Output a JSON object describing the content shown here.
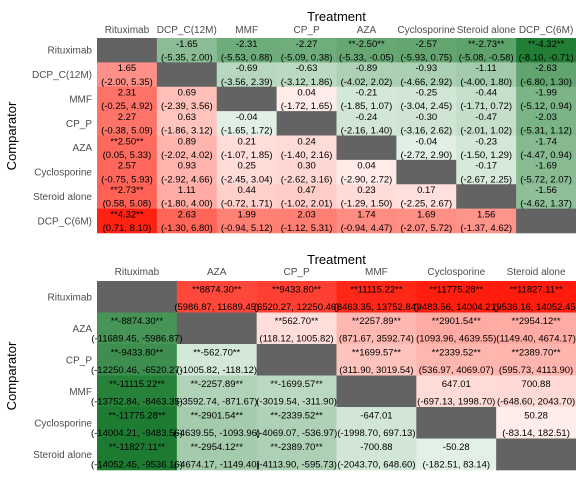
{
  "colors": {
    "negative_strong": "#1a7a2e",
    "negative_light": "#e6f2e8",
    "positive_light": "#fff0ec",
    "positive_strong": "#ff1a0a",
    "diagonal": "#636363"
  },
  "chart_data": [
    {
      "type": "heatmap",
      "title": "Treatment",
      "xlabel": "Treatment",
      "ylabel": "Comparator",
      "x_categories": [
        "Rituximab",
        "DCP_C(12M)",
        "MMF",
        "CP_P",
        "AZA",
        "Cyclosporine",
        "Steroid alone",
        "DCP_C(6M)"
      ],
      "y_categories": [
        "Rituximab",
        "DCP_C(12M)",
        "MMF",
        "CP_P",
        "AZA",
        "Cyclosporine",
        "Steroid alone",
        "DCP_C(6M)"
      ],
      "color_scale": [
        -4.5,
        4.5
      ],
      "cells": [
        [
          null,
          {
            "v": -1.65,
            "est": "-1.65",
            "ci": "(-5.35, 2.00)"
          },
          {
            "v": -2.31,
            "est": "-2.31",
            "ci": "(-5.53, 0.88)"
          },
          {
            "v": -2.27,
            "est": "-2.27",
            "ci": "(-5.09, 0.38)"
          },
          {
            "v": -2.5,
            "est": "**-2.50**",
            "ci": "(-5.33, -0.05)"
          },
          {
            "v": -2.57,
            "est": "-2.57",
            "ci": "(-5.93, 0.75)"
          },
          {
            "v": -2.73,
            "est": "**-2.73**",
            "ci": "(-5.08, -0.58)"
          },
          {
            "v": -4.32,
            "est": "**-4.32**",
            "ci": "(-8.10, -0.71)"
          }
        ],
        [
          {
            "v": 1.65,
            "est": "1.65",
            "ci": "(-2.00, 5.35)"
          },
          null,
          {
            "v": -0.69,
            "est": "-0.69",
            "ci": "(-3.56, 2.39)"
          },
          {
            "v": -0.63,
            "est": "-0.63",
            "ci": "(-3.12, 1.86)"
          },
          {
            "v": -0.89,
            "est": "-0.89",
            "ci": "(-4.02, 2.02)"
          },
          {
            "v": -0.93,
            "est": "-0.93",
            "ci": "(-4.66, 2.92)"
          },
          {
            "v": -1.11,
            "est": "-1.11",
            "ci": "(-4.00, 1.80)"
          },
          {
            "v": -2.63,
            "est": "-2.63",
            "ci": "(-6.80, 1.30)"
          }
        ],
        [
          {
            "v": 2.31,
            "est": "2.31",
            "ci": "(-0.25, 4.92)"
          },
          {
            "v": 0.69,
            "est": "0.69",
            "ci": "(-2.39, 3.56)"
          },
          null,
          {
            "v": 0.04,
            "est": "0.04",
            "ci": "(-1.72, 1.65)"
          },
          {
            "v": -0.21,
            "est": "-0.21",
            "ci": "(-1.85, 1.07)"
          },
          {
            "v": -0.25,
            "est": "-0.25",
            "ci": "(-3.04, 2.45)"
          },
          {
            "v": -0.44,
            "est": "-0.44",
            "ci": "(-1.71, 0.72)"
          },
          {
            "v": -1.99,
            "est": "-1.99",
            "ci": "(-5.12, 0.94)"
          }
        ],
        [
          {
            "v": 2.27,
            "est": "2.27",
            "ci": "(-0.38, 5.09)"
          },
          {
            "v": 0.63,
            "est": "0.63",
            "ci": "(-1.86, 3.12)"
          },
          {
            "v": -0.04,
            "est": "-0.04",
            "ci": "(-1.65, 1.72)"
          },
          null,
          {
            "v": -0.24,
            "est": "-0.24",
            "ci": "(-2.16, 1.40)"
          },
          {
            "v": -0.3,
            "est": "-0.30",
            "ci": "(-3.16, 2.62)"
          },
          {
            "v": -0.47,
            "est": "-0.47",
            "ci": "(-2.01, 1.02)"
          },
          {
            "v": -2.03,
            "est": "-2.03",
            "ci": "(-5.31, 1.12)"
          }
        ],
        [
          {
            "v": 2.5,
            "est": "**2.50**",
            "ci": "(0.05, 5.33)"
          },
          {
            "v": 0.89,
            "est": "0.89",
            "ci": "(-2.02, 4.02)"
          },
          {
            "v": 0.21,
            "est": "0.21",
            "ci": "(-1.07, 1.85)"
          },
          {
            "v": 0.24,
            "est": "0.24",
            "ci": "(-1.40, 2.16)"
          },
          null,
          {
            "v": -0.04,
            "est": "-0.04",
            "ci": "(-2.72, 2.90)"
          },
          {
            "v": -0.23,
            "est": "-0.23",
            "ci": "(-1.50, 1.29)"
          },
          {
            "v": -1.74,
            "est": "-1.74",
            "ci": "(-4.47, 0.94)"
          }
        ],
        [
          {
            "v": 2.57,
            "est": "2.57",
            "ci": "(-0.75, 5.93)"
          },
          {
            "v": 0.93,
            "est": "0.93",
            "ci": "(-2.92, 4.66)"
          },
          {
            "v": 0.25,
            "est": "0.25",
            "ci": "(-2.45, 3.04)"
          },
          {
            "v": 0.3,
            "est": "0.30",
            "ci": "(-2.62, 3.16)"
          },
          {
            "v": 0.04,
            "est": "0.04",
            "ci": "(-2.90, 2.72)"
          },
          null,
          {
            "v": -0.17,
            "est": "-0.17",
            "ci": "(-2.67, 2.25)"
          },
          {
            "v": -1.69,
            "est": "-1.69",
            "ci": "(-5.72, 2.07)"
          }
        ],
        [
          {
            "v": 2.73,
            "est": "**2.73**",
            "ci": "(0.58, 5.08)"
          },
          {
            "v": 1.11,
            "est": "1.11",
            "ci": "(-1.80, 4.00)"
          },
          {
            "v": 0.44,
            "est": "0.44",
            "ci": "(-0.72, 1.71)"
          },
          {
            "v": 0.47,
            "est": "0.47",
            "ci": "(-1.02, 2.01)"
          },
          {
            "v": 0.23,
            "est": "0.23",
            "ci": "(-1.29, 1.50)"
          },
          {
            "v": 0.17,
            "est": "0.17",
            "ci": "(-2.25, 2.67)"
          },
          null,
          {
            "v": -1.56,
            "est": "-1.56",
            "ci": "(-4.62, 1.37)"
          }
        ],
        [
          {
            "v": 4.32,
            "est": "**4.32**",
            "ci": "(0.71, 8.10)"
          },
          {
            "v": 2.63,
            "est": "2.63",
            "ci": "(-1.30, 6.80)"
          },
          {
            "v": 1.99,
            "est": "1.99",
            "ci": "(-0.94, 5.12)"
          },
          {
            "v": 2.03,
            "est": "2.03",
            "ci": "(-1.12, 5.31)"
          },
          {
            "v": 1.74,
            "est": "1.74",
            "ci": "(-0.94, 4.47)"
          },
          {
            "v": 1.69,
            "est": "1.69",
            "ci": "(-2.07, 5.72)"
          },
          {
            "v": 1.56,
            "est": "1.56",
            "ci": "(-1.37, 4.62)"
          },
          null
        ]
      ]
    },
    {
      "type": "heatmap",
      "title": "Treatment",
      "xlabel": "Treatment",
      "ylabel": "Comparator",
      "x_categories": [
        "Rituximab",
        "AZA",
        "CP_P",
        "MMF",
        "Cyclosporine",
        "Steroid alone"
      ],
      "y_categories": [
        "Rituximab",
        "AZA",
        "CP_P",
        "MMF",
        "Cyclosporine",
        "Steroid alone"
      ],
      "color_scale": [
        -12000,
        12000
      ],
      "cells": [
        [
          null,
          {
            "v": 8874.3,
            "est": "**8874.30**",
            "ci": "(5986.87, 11689.45)"
          },
          {
            "v": 9433.8,
            "est": "**9433.80**",
            "ci": "(6520.27, 12250.46)"
          },
          {
            "v": 11115.22,
            "est": "**11115.22**",
            "ci": "(8463.35, 13752.84)"
          },
          {
            "v": 11775.28,
            "est": "**11775.28**",
            "ci": "(9483.56, 14004.21)"
          },
          {
            "v": 11827.11,
            "est": "**11827.11**",
            "ci": "(9536.16, 14052.45)"
          }
        ],
        [
          {
            "v": -8874.3,
            "est": "**-8874.30**",
            "ci": "(-11689.45, -5986.87)"
          },
          null,
          {
            "v": 562.7,
            "est": "**562.70**",
            "ci": "(118.12, 1005.82)"
          },
          {
            "v": 2257.89,
            "est": "**2257.89**",
            "ci": "(871.67, 3592.74)"
          },
          {
            "v": 2901.54,
            "est": "**2901.54**",
            "ci": "(1093.96, 4639.55)"
          },
          {
            "v": 2954.12,
            "est": "**2954.12**",
            "ci": "(1149.40, 4674.17)"
          }
        ],
        [
          {
            "v": -9433.8,
            "est": "**-9433.80**",
            "ci": "(-12250.46, -6520.27)"
          },
          {
            "v": -562.7,
            "est": "**-562.70**",
            "ci": "(-1005.82, -118.12)"
          },
          null,
          {
            "v": 1699.57,
            "est": "**1699.57**",
            "ci": "(311.90, 3019.54)"
          },
          {
            "v": 2339.52,
            "est": "**2339.52**",
            "ci": "(536.97, 4069.07)"
          },
          {
            "v": 2389.7,
            "est": "**2389.70**",
            "ci": "(595.73, 4113.90)"
          }
        ],
        [
          {
            "v": -11115.22,
            "est": "**-11115.22**",
            "ci": "(-13752.84, -8463.35)"
          },
          {
            "v": -2257.89,
            "est": "**-2257.89**",
            "ci": "(-3592.74, -871.67)"
          },
          {
            "v": -1699.57,
            "est": "**-1699.57**",
            "ci": "(-3019.54, -311.90)"
          },
          null,
          {
            "v": 647.01,
            "est": "647.01",
            "ci": "(-697.13, 1998.70)"
          },
          {
            "v": 700.88,
            "est": "700.88",
            "ci": "(-648.60, 2043.70)"
          }
        ],
        [
          {
            "v": -11775.28,
            "est": "**-11775.28**",
            "ci": "(-14004.21, -9483.56)"
          },
          {
            "v": -2901.54,
            "est": "**-2901.54**",
            "ci": "(-4639.55, -1093.96)"
          },
          {
            "v": -2339.52,
            "est": "**-2339.52**",
            "ci": "(-4069.07, -536.97)"
          },
          {
            "v": -647.01,
            "est": "-647.01",
            "ci": "(-1998.70, 697.13)"
          },
          null,
          {
            "v": 50.28,
            "est": "50.28",
            "ci": "(-83.14, 182.51)"
          }
        ],
        [
          {
            "v": -11827.11,
            "est": "**-11827.11**",
            "ci": "(-14052.45, -9536.16)"
          },
          {
            "v": -2954.12,
            "est": "**-2954.12**",
            "ci": "(-4674.17, -1149.40)"
          },
          {
            "v": -2389.7,
            "est": "**-2389.70**",
            "ci": "(-4113.90, -595.73)"
          },
          {
            "v": -700.88,
            "est": "-700.88",
            "ci": "(-2043.70, 648.60)"
          },
          {
            "v": -50.28,
            "est": "-50.28",
            "ci": "(-182.51, 83.14)"
          },
          null
        ]
      ]
    }
  ]
}
